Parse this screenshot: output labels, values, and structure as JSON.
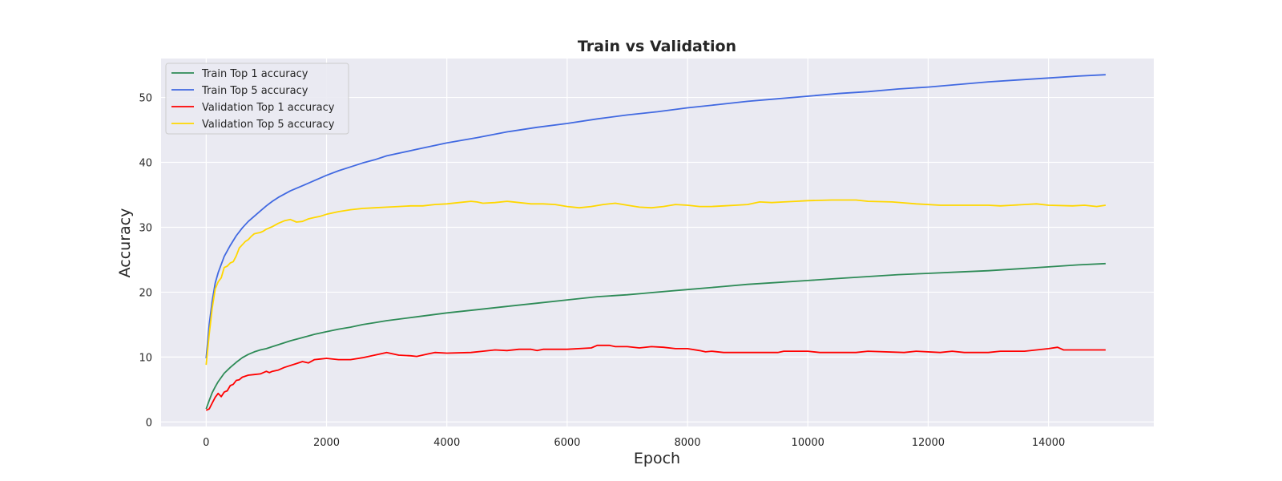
{
  "chart_data": {
    "type": "line",
    "title": "Train vs Validation",
    "xlabel": "Epoch",
    "ylabel": "Accuracy",
    "xlim": [
      -750,
      15750
    ],
    "ylim": [
      -0.7,
      56
    ],
    "xticks": [
      0,
      2000,
      4000,
      6000,
      8000,
      10000,
      12000,
      14000
    ],
    "yticks": [
      0,
      10,
      20,
      30,
      40,
      50
    ],
    "grid": true,
    "legend_position": "upper left",
    "series": [
      {
        "name": "Train Top 1 accuracy",
        "color": "#2e8b57",
        "x": [
          0,
          50,
          100,
          150,
          200,
          300,
          400,
          500,
          600,
          700,
          800,
          900,
          1000,
          1100,
          1200,
          1400,
          1600,
          1800,
          2000,
          2200,
          2400,
          2600,
          2800,
          3000,
          3500,
          4000,
          4500,
          5000,
          5500,
          6000,
          6500,
          7000,
          7500,
          8000,
          8500,
          9000,
          9500,
          10000,
          10500,
          11000,
          11500,
          12000,
          12500,
          13000,
          13500,
          14000,
          14500,
          14950
        ],
        "y": [
          2.0,
          3.3,
          4.5,
          5.4,
          6.2,
          7.5,
          8.4,
          9.2,
          9.9,
          10.4,
          10.8,
          11.1,
          11.3,
          11.6,
          11.9,
          12.5,
          13.0,
          13.5,
          13.9,
          14.3,
          14.6,
          15.0,
          15.3,
          15.6,
          16.2,
          16.8,
          17.3,
          17.8,
          18.3,
          18.8,
          19.3,
          19.6,
          20.0,
          20.4,
          20.8,
          21.2,
          21.5,
          21.8,
          22.1,
          22.4,
          22.7,
          22.9,
          23.1,
          23.3,
          23.6,
          23.9,
          24.2,
          24.4
        ]
      },
      {
        "name": "Train Top 5 accuracy",
        "color": "#4169e1",
        "x": [
          0,
          50,
          100,
          150,
          200,
          300,
          400,
          500,
          600,
          700,
          800,
          900,
          1000,
          1100,
          1200,
          1400,
          1600,
          1800,
          2000,
          2200,
          2400,
          2600,
          2800,
          3000,
          3500,
          4000,
          4500,
          5000,
          5500,
          6000,
          6500,
          7000,
          7500,
          8000,
          8500,
          9000,
          9500,
          10000,
          10500,
          11000,
          11500,
          12000,
          12500,
          13000,
          13500,
          14000,
          14500,
          14950
        ],
        "y": [
          9.8,
          15.0,
          18.6,
          21.4,
          23.0,
          25.5,
          27.2,
          28.7,
          29.9,
          30.9,
          31.7,
          32.5,
          33.3,
          34.0,
          34.6,
          35.6,
          36.4,
          37.2,
          38.0,
          38.7,
          39.3,
          39.9,
          40.4,
          41.0,
          42.0,
          43.0,
          43.8,
          44.7,
          45.4,
          46.0,
          46.7,
          47.3,
          47.8,
          48.4,
          48.9,
          49.4,
          49.8,
          50.2,
          50.6,
          50.9,
          51.3,
          51.6,
          52.0,
          52.4,
          52.7,
          53.0,
          53.3,
          53.5
        ]
      },
      {
        "name": "Validation Top 1 accuracy",
        "color": "#ff0000",
        "x": [
          0,
          50,
          100,
          150,
          200,
          250,
          300,
          350,
          400,
          450,
          500,
          550,
          600,
          700,
          800,
          900,
          1000,
          1050,
          1100,
          1200,
          1300,
          1500,
          1600,
          1700,
          1800,
          1900,
          2000,
          2200,
          2400,
          2600,
          2800,
          3000,
          3200,
          3400,
          3500,
          3700,
          3800,
          4000,
          4400,
          4600,
          4800,
          5000,
          5200,
          5400,
          5500,
          5600,
          6000,
          6400,
          6500,
          6700,
          6800,
          7000,
          7200,
          7400,
          7600,
          7800,
          8000,
          8200,
          8300,
          8400,
          8600,
          9000,
          9500,
          9600,
          10000,
          10200,
          10800,
          11000,
          11600,
          11800,
          12200,
          12400,
          12600,
          13000,
          13200,
          13600,
          13800,
          14000,
          14150,
          14250,
          14500,
          14950
        ],
        "y": [
          1.8,
          2.0,
          2.9,
          3.8,
          4.4,
          3.9,
          4.6,
          4.8,
          5.6,
          5.8,
          6.4,
          6.5,
          6.9,
          7.2,
          7.3,
          7.4,
          7.8,
          7.6,
          7.8,
          8.0,
          8.4,
          9.0,
          9.3,
          9.1,
          9.6,
          9.7,
          9.8,
          9.6,
          9.6,
          9.9,
          10.3,
          10.7,
          10.3,
          10.2,
          10.1,
          10.5,
          10.7,
          10.6,
          10.7,
          10.9,
          11.1,
          11.0,
          11.2,
          11.2,
          11.0,
          11.2,
          11.2,
          11.4,
          11.8,
          11.8,
          11.6,
          11.6,
          11.4,
          11.6,
          11.5,
          11.3,
          11.3,
          11.0,
          10.8,
          10.9,
          10.7,
          10.7,
          10.7,
          10.9,
          10.9,
          10.7,
          10.7,
          10.9,
          10.7,
          10.9,
          10.7,
          10.9,
          10.7,
          10.7,
          10.9,
          10.9,
          11.1,
          11.3,
          11.5,
          11.1,
          11.1,
          11.1
        ]
      },
      {
        "name": "Validation Top 5 accuracy",
        "color": "#ffd700",
        "x": [
          0,
          50,
          100,
          150,
          200,
          250,
          300,
          350,
          400,
          450,
          500,
          550,
          600,
          650,
          700,
          750,
          800,
          850,
          900,
          950,
          1000,
          1100,
          1200,
          1300,
          1400,
          1500,
          1600,
          1700,
          1800,
          1900,
          2000,
          2200,
          2400,
          2600,
          2800,
          3000,
          3200,
          3400,
          3600,
          3800,
          4000,
          4200,
          4400,
          4500,
          4600,
          4800,
          5000,
          5200,
          5400,
          5600,
          5800,
          6000,
          6200,
          6400,
          6600,
          6800,
          7000,
          7200,
          7400,
          7600,
          7800,
          8000,
          8200,
          8400,
          8600,
          8800,
          9000,
          9200,
          9400,
          9600,
          9800,
          10000,
          10400,
          10800,
          11000,
          11400,
          11800,
          12200,
          12600,
          13000,
          13200,
          13400,
          13600,
          13800,
          14000,
          14400,
          14600,
          14800,
          14950
        ],
        "y": [
          8.8,
          13.5,
          17.5,
          20.5,
          21.6,
          22.2,
          23.8,
          24.0,
          24.5,
          24.7,
          25.6,
          26.8,
          27.3,
          27.8,
          28.1,
          28.6,
          29.0,
          29.1,
          29.2,
          29.4,
          29.7,
          30.1,
          30.6,
          31.0,
          31.2,
          30.8,
          30.9,
          31.3,
          31.5,
          31.7,
          32.0,
          32.4,
          32.7,
          32.9,
          33.0,
          33.1,
          33.2,
          33.3,
          33.3,
          33.5,
          33.6,
          33.8,
          34.0,
          33.9,
          33.7,
          33.8,
          34.0,
          33.8,
          33.6,
          33.6,
          33.5,
          33.2,
          33.0,
          33.2,
          33.5,
          33.7,
          33.4,
          33.1,
          33.0,
          33.2,
          33.5,
          33.4,
          33.2,
          33.2,
          33.3,
          33.4,
          33.5,
          33.9,
          33.8,
          33.9,
          34.0,
          34.1,
          34.2,
          34.2,
          34.0,
          33.9,
          33.6,
          33.4,
          33.4,
          33.4,
          33.3,
          33.4,
          33.5,
          33.6,
          33.4,
          33.3,
          33.4,
          33.2,
          33.4
        ]
      }
    ]
  }
}
